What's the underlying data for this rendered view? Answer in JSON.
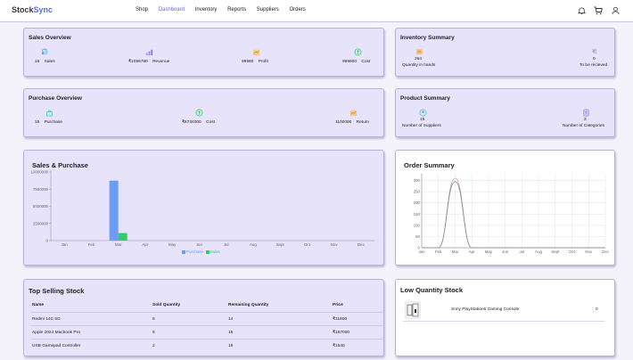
{
  "brand": {
    "part1": "Stock",
    "part2": "Sync"
  },
  "nav": [
    "Shop",
    "Dashboard",
    "Inventory",
    "Reports",
    "Suppliers",
    "Orders"
  ],
  "nav_active": "Dashboard",
  "sales_overview": {
    "title": "Sales Overview",
    "stats": [
      {
        "value": "16",
        "label": "Sales",
        "icon": "sales-icon"
      },
      {
        "value": "₹1099780",
        "label": "Revenue",
        "icon": "revenue-chart-icon"
      },
      {
        "value": "99980",
        "label": "Profit",
        "icon": "profit-icon"
      },
      {
        "value": "999800",
        "label": "Cost",
        "icon": "cost-icon"
      }
    ]
  },
  "inventory_summary": {
    "title": "Inventory Summary",
    "stats": [
      {
        "value": "264",
        "label": "Quantity in hands",
        "icon": "quantity-icon"
      },
      {
        "value": "0",
        "label": "To be recieved",
        "icon": "to-be-received-icon"
      }
    ]
  },
  "purchase_overview": {
    "title": "Purchase Overview",
    "stats": [
      {
        "value": "15",
        "label": "Purchase",
        "icon": "purchase-bag-icon"
      },
      {
        "value": "₹8734000",
        "label": "Cost",
        "icon": "cost-icon"
      },
      {
        "value": "1100000",
        "label": "Return",
        "icon": "return-icon"
      }
    ]
  },
  "product_summary": {
    "title": "Product Summary",
    "stats": [
      {
        "value": "15",
        "label": "Number of Suppliers",
        "icon": "suppliers-icon"
      },
      {
        "value": "3",
        "label": "Number of Categories",
        "icon": "categories-icon"
      }
    ]
  },
  "sales_purchase": {
    "title": "Sales & Purchase"
  },
  "order_summary": {
    "title": "Order Summary"
  },
  "top_selling": {
    "title": "Top Selling Stock",
    "columns": [
      "Name",
      "Sold Quantity",
      "Remaining Quantity",
      "Price"
    ],
    "rows": [
      [
        "Redmi 14C 5G",
        "6",
        "14",
        "₹11800"
      ],
      [
        "Apple 2024 Macbook Pro",
        "5",
        "15",
        "₹167000"
      ],
      [
        "USB Gamepad Controller",
        "2",
        "18",
        "₹1540"
      ]
    ]
  },
  "low_quantity": {
    "title": "Low Quantity Stock",
    "items": [
      {
        "name": "Sony PlayStation5 Gaming Console",
        "qty": "0"
      }
    ]
  },
  "colors": {
    "purchase": "#6b9cf7",
    "sales": "#2ecf6a",
    "accent": "#5b6fd6"
  },
  "chart_data": [
    {
      "type": "bar",
      "title": "Sales & Purchase",
      "categories": [
        "Jan",
        "Feb",
        "Mar",
        "Apr",
        "May",
        "Jun",
        "Jul",
        "Aug",
        "Sept",
        "Oct",
        "Nov",
        "Dec"
      ],
      "series": [
        {
          "name": "Purchase",
          "values": [
            0,
            0,
            8734000,
            0,
            0,
            0,
            0,
            0,
            0,
            0,
            0,
            0
          ]
        },
        {
          "name": "Sales",
          "values": [
            0,
            0,
            1099780,
            0,
            0,
            0,
            0,
            0,
            0,
            0,
            0,
            0
          ]
        }
      ],
      "yticks": [
        0,
        2500000,
        5000000,
        7500000,
        10000000
      ],
      "ytick_labels": [
        "0",
        "2500000",
        "5000000",
        "7500000",
        "10000000"
      ],
      "ylim": [
        0,
        10000000
      ],
      "legend": "bottom"
    },
    {
      "type": "line",
      "title": "Order Summary",
      "categories": [
        "Jan",
        "Feb",
        "Mar",
        "Apr",
        "May",
        "Jun",
        "Jul",
        "Aug",
        "Sept",
        "Oct",
        "Nov",
        "Dec"
      ],
      "series": [
        {
          "name": "Ordered",
          "values": [
            0,
            0,
            310,
            0,
            0,
            0,
            0,
            0,
            0,
            0,
            0,
            0
          ]
        },
        {
          "name": "Delivered",
          "values": [
            0,
            0,
            295,
            0,
            0,
            0,
            0,
            0,
            0,
            0,
            0,
            0
          ]
        }
      ],
      "yticks": [
        0,
        50,
        100,
        150,
        200,
        250,
        300
      ],
      "ytick_labels": [
        "0",
        "50",
        "100",
        "150",
        "200",
        "250",
        "300"
      ],
      "ylim": [
        0,
        330
      ]
    }
  ]
}
